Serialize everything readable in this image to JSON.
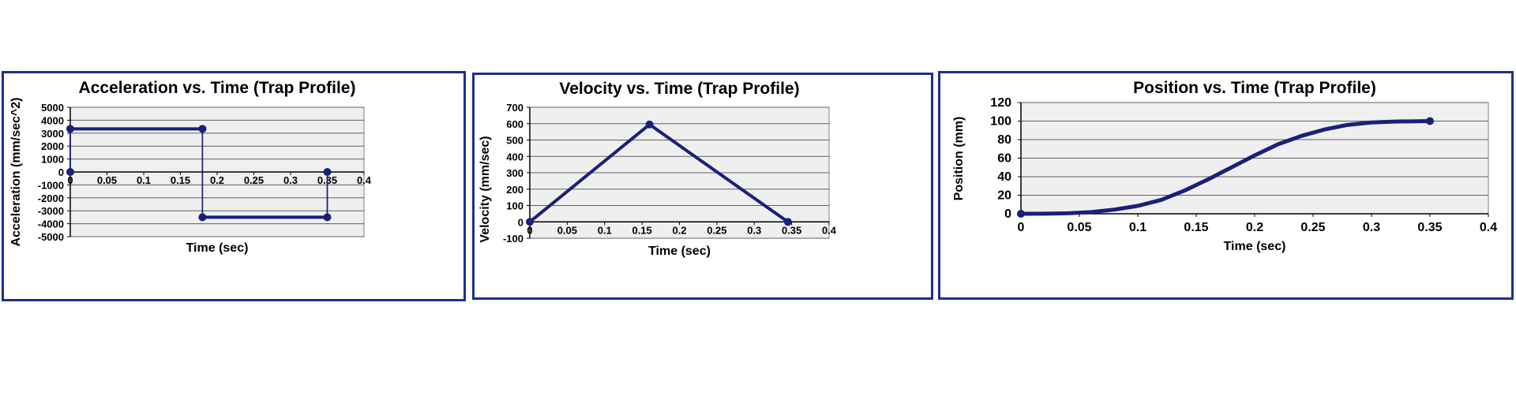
{
  "colors": {
    "series": "#1a1f7a",
    "frame": "#1f2f8f",
    "plot_bg": "#efefef",
    "grid": "#606060"
  },
  "chart_data": [
    {
      "type": "line",
      "title": "Acceleration vs. Time (Trap Profile)",
      "xlabel": "Time (sec)",
      "ylabel": "Acceleration (mm/sec^2)",
      "xlim": [
        0,
        0.4
      ],
      "ylim": [
        -5000,
        5000
      ],
      "xticks": [
        "0",
        "0.05",
        "0.1",
        "0.15",
        "0.2",
        "0.25",
        "0.3",
        "0.35",
        "0.4"
      ],
      "yticks": [
        "5000",
        "4000",
        "3000",
        "2000",
        "1000",
        "0",
        "-1000",
        "-2000",
        "-3000",
        "-4000",
        "-5000"
      ],
      "grid": true,
      "series": [
        {
          "x": [
            0,
            0,
            0.18,
            0.18,
            0.35,
            0.35
          ],
          "y": [
            0,
            3333,
            3333,
            -3500,
            -3500,
            0
          ],
          "markers": [
            [
              0,
              0
            ],
            [
              0,
              3333
            ],
            [
              0.18,
              3333
            ],
            [
              0.18,
              -3500
            ],
            [
              0.35,
              -3500
            ],
            [
              0.35,
              0
            ]
          ]
        }
      ]
    },
    {
      "type": "line",
      "title": "Velocity vs. Time (Trap Profile)",
      "xlabel": "Time (sec)",
      "ylabel": "Velocity (mm/sec)",
      "xlim": [
        0,
        0.4
      ],
      "ylim": [
        -100,
        700
      ],
      "xticks": [
        "0",
        "0.05",
        "0.1",
        "0.15",
        "0.2",
        "0.25",
        "0.3",
        "0.35",
        "0.4"
      ],
      "yticks": [
        "700",
        "600",
        "500",
        "400",
        "300",
        "200",
        "100",
        "0",
        "-100"
      ],
      "grid": true,
      "series": [
        {
          "x": [
            0,
            0.16,
            0.345
          ],
          "y": [
            0,
            595,
            0
          ],
          "markers": [
            [
              0,
              0
            ],
            [
              0.16,
              595
            ],
            [
              0.345,
              0
            ]
          ]
        }
      ]
    },
    {
      "type": "line",
      "title": "Position vs. Time (Trap Profile)",
      "xlabel": "Time (sec)",
      "ylabel": "Position (mm)",
      "xlim": [
        0,
        0.4
      ],
      "ylim": [
        0,
        120
      ],
      "xticks": [
        "0",
        "0.05",
        "0.1",
        "0.15",
        "0.2",
        "0.25",
        "0.3",
        "0.35",
        "0.4"
      ],
      "yticks": [
        "120",
        "100",
        "80",
        "60",
        "40",
        "20",
        "0"
      ],
      "grid": true,
      "series": [
        {
          "x": [
            0,
            0.02,
            0.04,
            0.06,
            0.08,
            0.1,
            0.12,
            0.14,
            0.16,
            0.18,
            0.2,
            0.22,
            0.24,
            0.26,
            0.28,
            0.3,
            0.32,
            0.35
          ],
          "y": [
            0,
            0.1,
            0.5,
            1.8,
            4.5,
            8.5,
            15,
            25,
            37,
            50,
            63,
            75,
            84,
            91,
            96,
            98.5,
            99.5,
            100
          ],
          "markers": [
            [
              0,
              0
            ],
            [
              0.35,
              100
            ]
          ]
        }
      ]
    }
  ]
}
